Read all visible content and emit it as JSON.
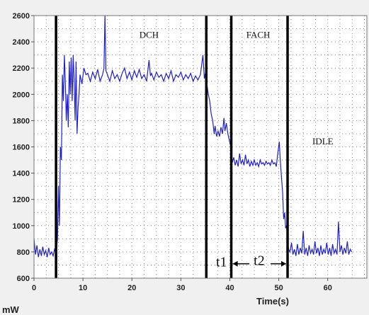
{
  "chart_data": {
    "type": "line",
    "title": "",
    "xlabel": "Time(s)",
    "ylabel": "mW",
    "xlim": [
      0,
      68
    ],
    "ylim": [
      600,
      2600
    ],
    "xticks": [
      0,
      10,
      20,
      30,
      40,
      50,
      60
    ],
    "yticks": [
      600,
      800,
      1000,
      1200,
      1400,
      1600,
      1800,
      2000,
      2200,
      2400,
      2600
    ],
    "grid": true,
    "line_color": "#1f1fd0",
    "series": [
      {
        "name": "",
        "points": [
          [
            0.0,
            900
          ],
          [
            0.3,
            780
          ],
          [
            0.6,
            850
          ],
          [
            0.9,
            760
          ],
          [
            1.2,
            820
          ],
          [
            1.5,
            770
          ],
          [
            1.8,
            840
          ],
          [
            2.1,
            780
          ],
          [
            2.4,
            810
          ],
          [
            2.7,
            760
          ],
          [
            3.0,
            830
          ],
          [
            3.3,
            780
          ],
          [
            3.6,
            800
          ],
          [
            3.9,
            770
          ],
          [
            4.2,
            820
          ],
          [
            4.5,
            790
          ],
          [
            4.8,
            900
          ],
          [
            5.0,
            1300
          ],
          [
            5.2,
            1000
          ],
          [
            5.4,
            1600
          ],
          [
            5.6,
            1500
          ],
          [
            5.8,
            2150
          ],
          [
            6.0,
            1950
          ],
          [
            6.2,
            2300
          ],
          [
            6.4,
            2100
          ],
          [
            6.6,
            1800
          ],
          [
            6.8,
            2000
          ],
          [
            7.0,
            1750
          ],
          [
            7.2,
            2250
          ],
          [
            7.4,
            2000
          ],
          [
            7.6,
            2280
          ],
          [
            7.8,
            1950
          ],
          [
            8.0,
            2300
          ],
          [
            8.2,
            2100
          ],
          [
            8.4,
            1800
          ],
          [
            8.6,
            2250
          ],
          [
            8.8,
            1700
          ],
          [
            9.0,
            1900
          ],
          [
            9.2,
            2000
          ],
          [
            9.4,
            2150
          ],
          [
            9.8,
            2080
          ],
          [
            10.2,
            2200
          ],
          [
            10.6,
            2150
          ],
          [
            11.0,
            2160
          ],
          [
            11.5,
            2100
          ],
          [
            12.0,
            2170
          ],
          [
            12.5,
            2120
          ],
          [
            13.0,
            2190
          ],
          [
            13.5,
            2100
          ],
          [
            14.0,
            2150
          ],
          [
            14.3,
            2200
          ],
          [
            14.5,
            2600
          ],
          [
            14.7,
            2180
          ],
          [
            15.0,
            2150
          ],
          [
            15.5,
            2100
          ],
          [
            16.0,
            2180
          ],
          [
            16.5,
            2120
          ],
          [
            17.0,
            2150
          ],
          [
            17.5,
            2100
          ],
          [
            18.0,
            2160
          ],
          [
            18.5,
            2200
          ],
          [
            19.0,
            2120
          ],
          [
            19.5,
            2170
          ],
          [
            20.0,
            2110
          ],
          [
            20.5,
            2180
          ],
          [
            21.0,
            2130
          ],
          [
            21.5,
            2190
          ],
          [
            22.0,
            2120
          ],
          [
            22.5,
            2150
          ],
          [
            23.0,
            2100
          ],
          [
            23.5,
            2260
          ],
          [
            23.8,
            2140
          ],
          [
            24.0,
            2160
          ],
          [
            24.5,
            2110
          ],
          [
            25.0,
            2170
          ],
          [
            25.5,
            2130
          ],
          [
            26.0,
            2150
          ],
          [
            26.5,
            2100
          ],
          [
            27.0,
            2160
          ],
          [
            27.5,
            2120
          ],
          [
            28.0,
            2180
          ],
          [
            28.5,
            2100
          ],
          [
            29.0,
            2150
          ],
          [
            29.5,
            2130
          ],
          [
            30.0,
            2170
          ],
          [
            30.5,
            2110
          ],
          [
            31.0,
            2150
          ],
          [
            31.5,
            2120
          ],
          [
            32.0,
            2160
          ],
          [
            32.5,
            2100
          ],
          [
            33.0,
            2140
          ],
          [
            33.5,
            2110
          ],
          [
            34.0,
            2150
          ],
          [
            34.5,
            2300
          ],
          [
            34.8,
            2120
          ],
          [
            35.0,
            2160
          ],
          [
            35.3,
            2080
          ],
          [
            35.6,
            2000
          ],
          [
            35.9,
            1950
          ],
          [
            36.2,
            1850
          ],
          [
            36.5,
            1800
          ],
          [
            36.8,
            1700
          ],
          [
            37.0,
            1760
          ],
          [
            37.3,
            1680
          ],
          [
            37.6,
            1720
          ],
          [
            37.9,
            1680
          ],
          [
            38.2,
            1750
          ],
          [
            38.5,
            1700
          ],
          [
            38.8,
            1820
          ],
          [
            39.0,
            1720
          ],
          [
            39.3,
            1780
          ],
          [
            39.6,
            1700
          ],
          [
            39.9,
            1650
          ],
          [
            40.2,
            1600
          ],
          [
            40.5,
            1480
          ],
          [
            40.8,
            1520
          ],
          [
            41.1,
            1460
          ],
          [
            41.4,
            1500
          ],
          [
            41.7,
            1450
          ],
          [
            42.0,
            1550
          ],
          [
            42.3,
            1470
          ],
          [
            42.6,
            1500
          ],
          [
            42.9,
            1460
          ],
          [
            43.2,
            1540
          ],
          [
            43.5,
            1470
          ],
          [
            43.8,
            1500
          ],
          [
            44.1,
            1450
          ],
          [
            44.4,
            1490
          ],
          [
            44.7,
            1460
          ],
          [
            45.0,
            1500
          ],
          [
            45.3,
            1460
          ],
          [
            45.6,
            1480
          ],
          [
            45.9,
            1450
          ],
          [
            46.2,
            1500
          ],
          [
            46.5,
            1470
          ],
          [
            46.8,
            1480
          ],
          [
            47.1,
            1460
          ],
          [
            47.4,
            1490
          ],
          [
            47.7,
            1470
          ],
          [
            48.0,
            1480
          ],
          [
            48.3,
            1460
          ],
          [
            48.6,
            1500
          ],
          [
            48.9,
            1470
          ],
          [
            49.2,
            1480
          ],
          [
            49.5,
            1450
          ],
          [
            49.8,
            1550
          ],
          [
            50.1,
            1640
          ],
          [
            50.3,
            1500
          ],
          [
            50.5,
            1400
          ],
          [
            50.8,
            1250
          ],
          [
            51.0,
            1050
          ],
          [
            51.2,
            1100
          ],
          [
            51.4,
            980
          ],
          [
            51.6,
            1000
          ],
          [
            51.8,
            900
          ],
          [
            52.0,
            820
          ],
          [
            52.3,
            800
          ],
          [
            52.6,
            870
          ],
          [
            52.9,
            780
          ],
          [
            53.2,
            820
          ],
          [
            53.5,
            770
          ],
          [
            53.8,
            860
          ],
          [
            54.1,
            780
          ],
          [
            54.4,
            830
          ],
          [
            54.7,
            790
          ],
          [
            55.0,
            960
          ],
          [
            55.3,
            780
          ],
          [
            55.6,
            830
          ],
          [
            55.9,
            770
          ],
          [
            56.2,
            850
          ],
          [
            56.5,
            790
          ],
          [
            56.8,
            820
          ],
          [
            57.1,
            780
          ],
          [
            57.4,
            880
          ],
          [
            57.7,
            790
          ],
          [
            58.0,
            830
          ],
          [
            58.3,
            770
          ],
          [
            58.6,
            850
          ],
          [
            58.9,
            780
          ],
          [
            59.2,
            820
          ],
          [
            59.5,
            790
          ],
          [
            59.8,
            870
          ],
          [
            60.1,
            780
          ],
          [
            60.4,
            830
          ],
          [
            60.7,
            770
          ],
          [
            61.0,
            860
          ],
          [
            61.3,
            790
          ],
          [
            61.6,
            820
          ],
          [
            61.9,
            780
          ],
          [
            62.2,
            1030
          ],
          [
            62.5,
            800
          ],
          [
            62.8,
            850
          ],
          [
            63.1,
            780
          ],
          [
            63.4,
            830
          ],
          [
            63.7,
            790
          ],
          [
            64.0,
            880
          ],
          [
            64.3,
            780
          ],
          [
            64.6,
            820
          ],
          [
            64.9,
            800
          ]
        ]
      }
    ],
    "markers": [
      {
        "name": "marker-dch-start",
        "x": 4.5
      },
      {
        "name": "marker-dch-end",
        "x": 35.2
      },
      {
        "name": "marker-fach-start",
        "x": 40.3
      },
      {
        "name": "marker-fach-end",
        "x": 51.8
      }
    ],
    "annotations": {
      "dch": {
        "text": "DCH",
        "x": 23.5,
        "y": 2430
      },
      "fach": {
        "text": "FACH",
        "x": 45.8,
        "y": 2430
      },
      "idle": {
        "text": "IDLE",
        "x": 59.0,
        "y": 1620
      },
      "t1": {
        "text": "t1",
        "x": 38.3,
        "y": 690
      },
      "t2": {
        "text": "t2",
        "x": 46.0,
        "y": 700
      }
    },
    "arrows": [
      {
        "name": "arrow-t1",
        "from": 44.0,
        "to": 40.6,
        "y": 710
      },
      {
        "name": "arrow-t2",
        "from": 48.3,
        "to": 51.5,
        "y": 710
      }
    ]
  }
}
